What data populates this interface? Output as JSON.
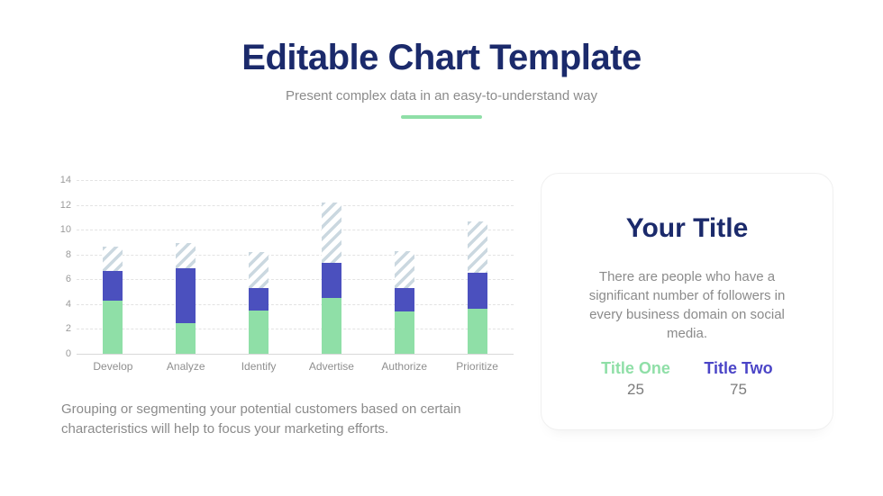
{
  "header": {
    "title": "Editable Chart Template",
    "subtitle": "Present complex data in an easy-to-understand way"
  },
  "chart_data": {
    "type": "bar",
    "stacked": true,
    "categories": [
      "Develop",
      "Analyze",
      "Identify",
      "Advertise",
      "Authorize",
      "Prioritize"
    ],
    "series": [
      {
        "name": "solid-green",
        "color": "#8FDFA7",
        "values": [
          4.3,
          2.5,
          3.5,
          4.5,
          3.4,
          3.6
        ]
      },
      {
        "name": "solid-purple",
        "color": "#4B50BE",
        "values": [
          2.4,
          4.4,
          1.8,
          2.8,
          1.9,
          2.9
        ]
      },
      {
        "name": "hatched-forecast",
        "color": "#CBD8E0",
        "pattern": "diagonal-stripes",
        "values": [
          1.9,
          2.0,
          2.9,
          4.9,
          3.0,
          4.2
        ]
      }
    ],
    "stack_totals": [
      8.6,
      8.9,
      8.2,
      12.2,
      8.3,
      10.7
    ],
    "title": "",
    "xlabel": "",
    "ylabel": "",
    "ylim": [
      0,
      14
    ],
    "yticks": [
      0,
      2,
      4,
      6,
      8,
      10,
      12,
      14
    ],
    "grid": "dashed-horizontal",
    "legend": "none"
  },
  "caption": "Grouping or segmenting your potential customers based on certain characteristics will help to focus your marketing efforts.",
  "card": {
    "title": "Your Title",
    "body": "There are people who have a significant number of followers in every business domain on social media.",
    "stats": [
      {
        "label": "Title One",
        "value": "25",
        "color": "#8FDFA7"
      },
      {
        "label": "Title Two",
        "value": "75",
        "color": "#4B45C7"
      }
    ]
  },
  "colors": {
    "accent_navy": "#1B2A6B",
    "accent_green": "#8FDFA7",
    "accent_purple": "#4B50BE",
    "hatch_stripe": "#CBD8E0",
    "text_gray": "#8B8B8B",
    "divider_green": "#8FDFA7"
  }
}
